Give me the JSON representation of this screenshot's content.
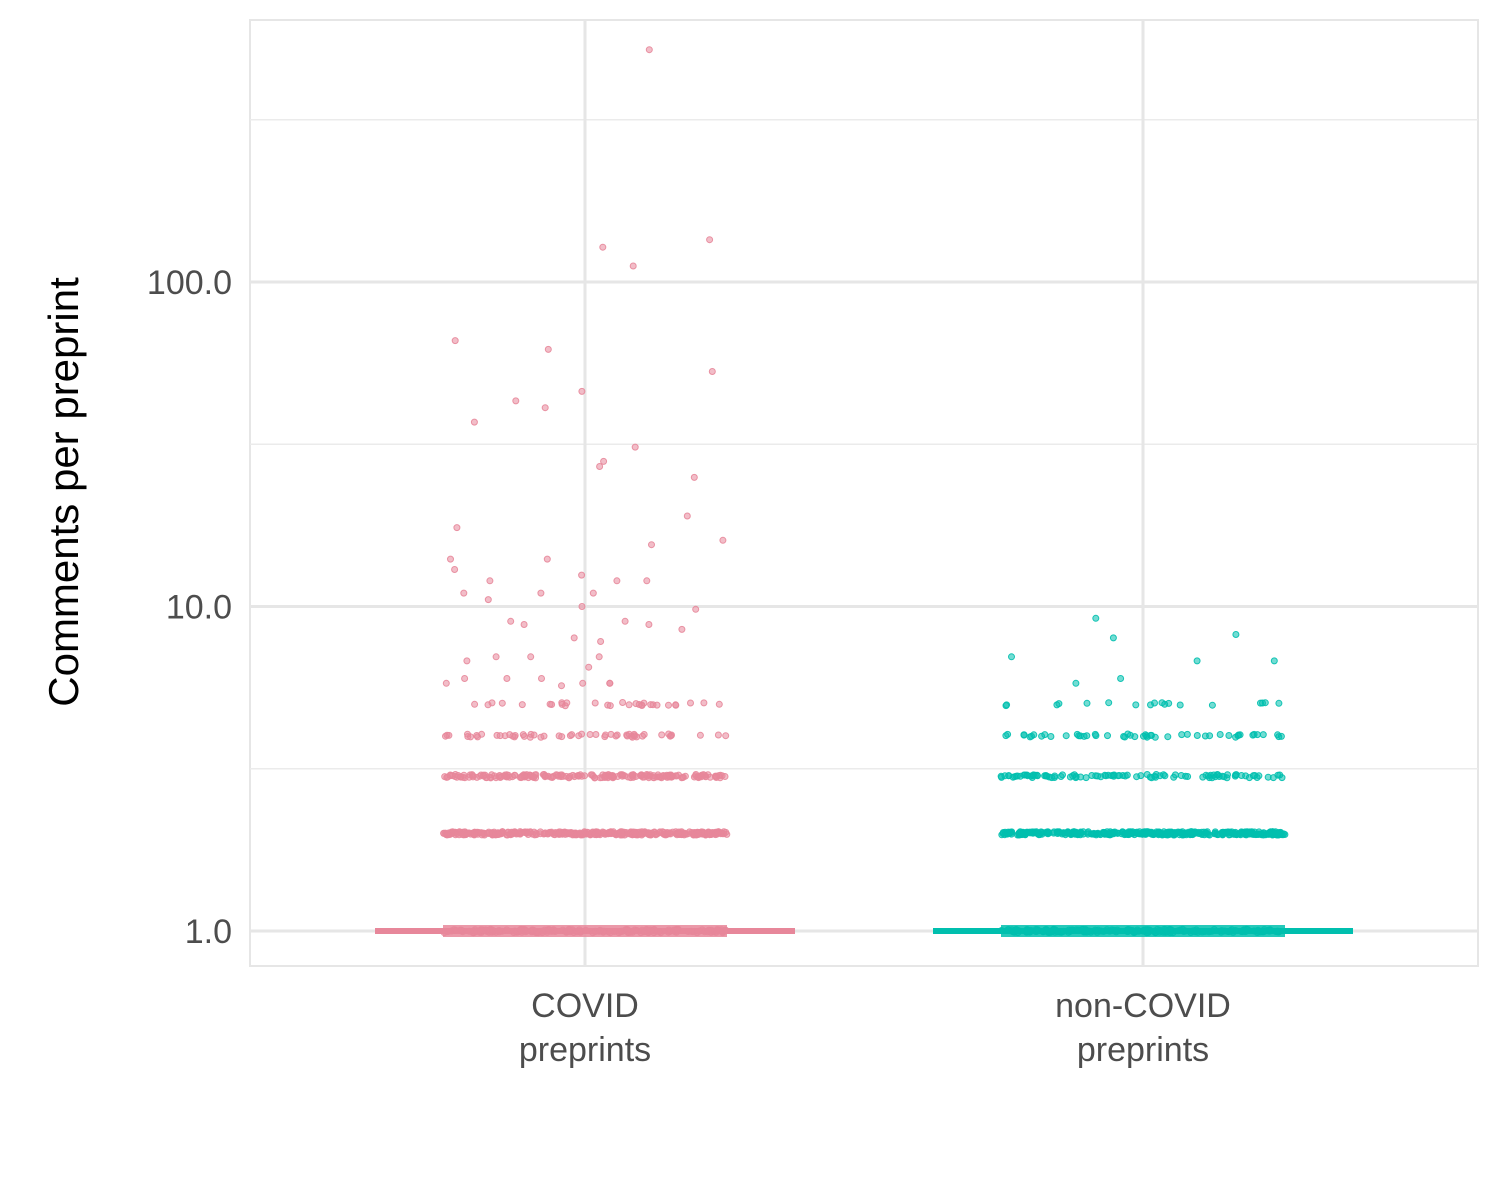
{
  "chart_data": {
    "type": "scatter",
    "ylabel": "Comments per preprint",
    "xlabel": "",
    "y_scale": "log10",
    "ylim": [
      0.8,
      600
    ],
    "y_ticks": [
      1,
      10,
      100
    ],
    "y_tick_labels": [
      "1.0",
      "10.0",
      "100.0"
    ],
    "grid": true,
    "legend": "none",
    "categories": [
      {
        "lines": [
          "COVID",
          "preprints"
        ]
      },
      {
        "lines": [
          "non-COVID",
          "preprints"
        ]
      }
    ],
    "series": [
      {
        "category_index": 0,
        "color": "#E7879A",
        "outliers": [
          520,
          135,
          128,
          112,
          62,
          66,
          53,
          46,
          41,
          37,
          43,
          31,
          27,
          28,
          25,
          19,
          17.5,
          16,
          15.5,
          14,
          14,
          13,
          12.5,
          12,
          12,
          12,
          11,
          11,
          11,
          10.5,
          10,
          9.8,
          9,
          9,
          8.8,
          8.8,
          8.5,
          8,
          7.8,
          7,
          7,
          7,
          6.8,
          6.5,
          6,
          6,
          6,
          5.8,
          5.8,
          5.8,
          5.8,
          5.7
        ],
        "levels": [
          {
            "value": 5,
            "count": 30
          },
          {
            "value": 4,
            "count": 55
          },
          {
            "value": 3,
            "count": 200
          },
          {
            "value": 2,
            "count": 420
          },
          {
            "value": 1,
            "count": 1400
          }
        ]
      },
      {
        "category_index": 1,
        "color": "#00BFAE",
        "outliers": [
          9.2,
          8.2,
          8,
          7,
          6.8,
          6.8,
          6,
          5.8
        ],
        "levels": [
          {
            "value": 5,
            "count": 18
          },
          {
            "value": 4,
            "count": 50
          },
          {
            "value": 3,
            "count": 100
          },
          {
            "value": 2,
            "count": 380
          },
          {
            "value": 1,
            "count": 2000
          }
        ]
      }
    ]
  }
}
